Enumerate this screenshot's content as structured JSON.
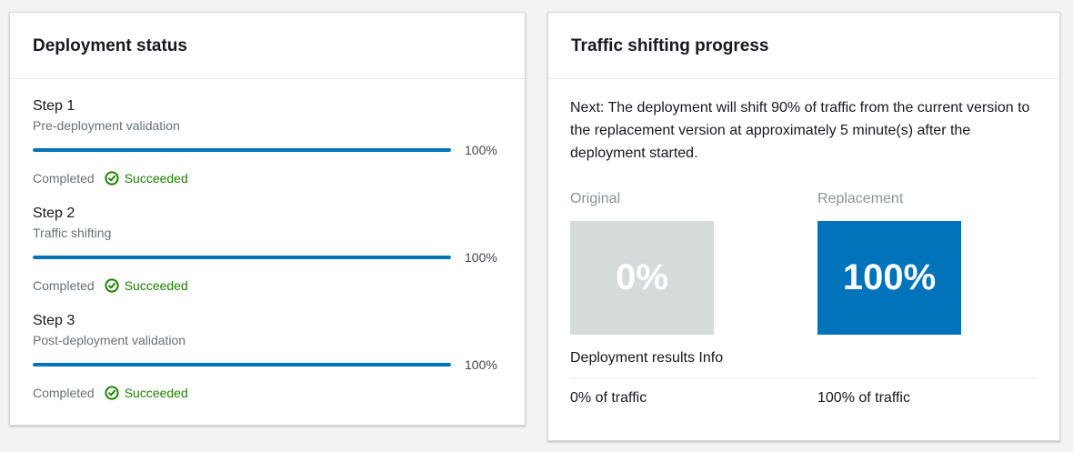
{
  "deployment_status": {
    "title": "Deployment status",
    "steps": [
      {
        "name": "Step 1",
        "description": "Pre-deployment validation",
        "percent": 100,
        "percent_label": "100%",
        "status": "Completed",
        "result": "Succeeded"
      },
      {
        "name": "Step 2",
        "description": "Traffic shifting",
        "percent": 100,
        "percent_label": "100%",
        "status": "Completed",
        "result": "Succeeded"
      },
      {
        "name": "Step 3",
        "description": "Post-deployment validation",
        "percent": 100,
        "percent_label": "100%",
        "status": "Completed",
        "result": "Succeeded"
      }
    ]
  },
  "traffic_shifting": {
    "title": "Traffic shifting progress",
    "next_message": "Next: The deployment will shift 90% of traffic from the current version to the replacement version at approximately 5 minute(s) after the deployment started.",
    "results_label": "Deployment results",
    "info_label": "Info",
    "original": {
      "label": "Original",
      "percent_label": "0%",
      "traffic_label": "0% of traffic",
      "box_color": "#d5dbdb"
    },
    "replacement": {
      "label": "Replacement",
      "percent_label": "100%",
      "traffic_label": "100% of traffic",
      "box_color": "#0073bb"
    }
  },
  "colors": {
    "page_background": "#f2f3f3",
    "accent_blue": "#0073bb",
    "success_green": "#1d8102",
    "neutral_box_gray": "#d5dbdb",
    "muted_text": "#687078",
    "heading_text": "#16191f"
  },
  "icons": {
    "success": "check-circle-icon"
  }
}
